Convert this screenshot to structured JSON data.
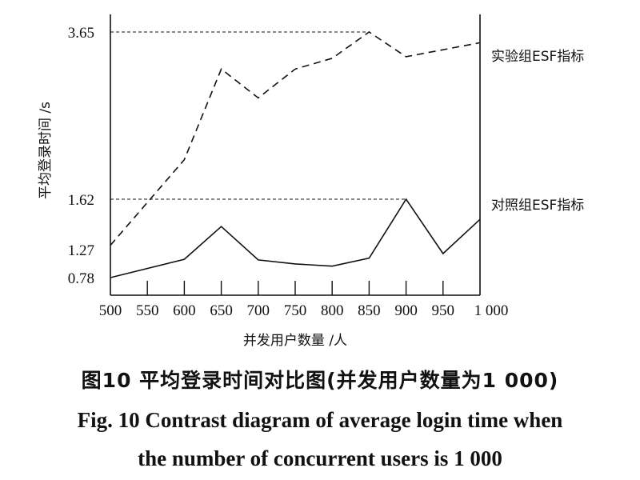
{
  "chart_data": {
    "type": "line",
    "ylabel": "平均登录时间 /s",
    "xlabel": "并发用户数量 /人",
    "x": [
      500,
      550,
      600,
      650,
      700,
      750,
      800,
      850,
      900,
      950,
      1000
    ],
    "x_tick_labels": [
      "500",
      "550",
      "600",
      "650",
      "700",
      "750",
      "800",
      "850",
      "900",
      "950",
      "1 000"
    ],
    "y_tick_labels": [
      "3.65",
      "1.62",
      "1.27",
      "0.78"
    ],
    "series": [
      {
        "name": "实验组ESF指标",
        "style": "dashed",
        "values": [
          1.3,
          null,
          2.1,
          3.2,
          2.85,
          3.2,
          3.33,
          3.65,
          3.35,
          null,
          3.52
        ]
      },
      {
        "name": "对照组ESF指标",
        "style": "solid",
        "values": [
          0.78,
          null,
          1.1,
          1.43,
          1.09,
          1.02,
          0.98,
          1.12,
          1.62,
          1.2,
          1.48
        ]
      }
    ],
    "reference_lines": [
      3.65,
      1.62
    ],
    "grid": false,
    "title": "图10  平均登录时间对比图(并发用户数量为1 000)",
    "subtitle": "Fig. 10  Contrast diagram of average login time when the number of concurrent users is 1 000",
    "caption_zh": "图10  平均登录时间对比图(并发用户数量为1 000)",
    "caption_en_line1": "Fig. 10  Contrast diagram of average login time when",
    "caption_en_line2": "the number of concurrent users is 1 000"
  }
}
